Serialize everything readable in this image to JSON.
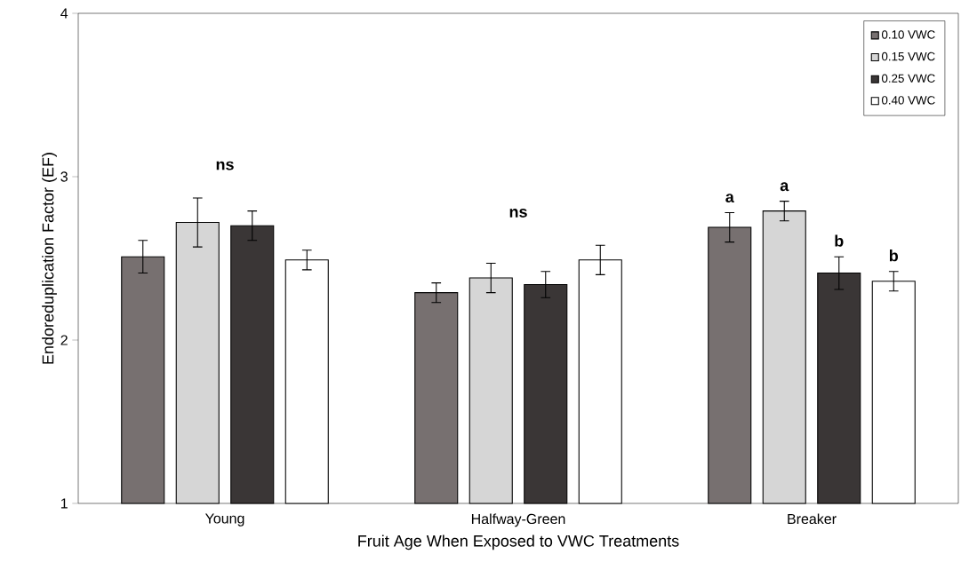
{
  "chart_data": {
    "type": "bar",
    "xlabel": "Fruit Age When Exposed to VWC Treatments",
    "ylabel": "Endoreduplication Factor (EF)",
    "categories": [
      "Young",
      "Halfway-Green",
      "Breaker"
    ],
    "series": [
      {
        "name": "0.10 VWC",
        "color": "#777070",
        "values": [
          2.51,
          2.29,
          2.69
        ],
        "errors": [
          0.1,
          0.06,
          0.09
        ],
        "value_labels": [
          null,
          null,
          "a"
        ]
      },
      {
        "name": "0.15 VWC",
        "color": "#d6d6d6",
        "values": [
          2.72,
          2.38,
          2.79
        ],
        "errors": [
          0.15,
          0.09,
          0.06
        ],
        "value_labels": [
          null,
          null,
          "a"
        ]
      },
      {
        "name": "0.25 VWC",
        "color": "#3a3636",
        "values": [
          2.7,
          2.34,
          2.41
        ],
        "errors": [
          0.09,
          0.08,
          0.1
        ],
        "value_labels": [
          null,
          null,
          "b"
        ]
      },
      {
        "name": "0.40 VWC",
        "color": "#ffffff",
        "values": [
          2.49,
          2.49,
          2.36
        ],
        "errors": [
          0.06,
          0.09,
          0.06
        ],
        "value_labels": [
          null,
          null,
          "b"
        ]
      }
    ],
    "ylim": [
      1,
      4
    ],
    "yticks": [
      1,
      2,
      3,
      4
    ],
    "legend": "top right",
    "grid": false,
    "annotations": [
      "ns",
      "ns"
    ]
  }
}
